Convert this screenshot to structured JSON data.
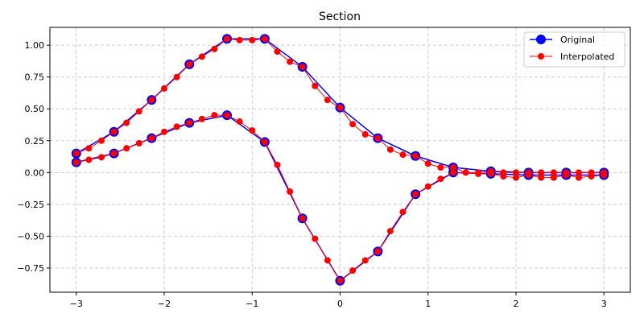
{
  "chart_data": {
    "type": "line",
    "title": "Section",
    "xlabel": "",
    "ylabel": "",
    "xlim": [
      -3.3,
      3.3
    ],
    "ylim": [
      -0.94,
      1.14
    ],
    "x_ticks": [
      -3,
      -2,
      -1,
      0,
      1,
      2,
      3
    ],
    "y_ticks": [
      -0.75,
      -0.5,
      -0.25,
      0.0,
      0.25,
      0.5,
      0.75,
      1.0
    ],
    "x_tick_labels": [
      "−3",
      "−2",
      "−1",
      "0",
      "1",
      "2",
      "3"
    ],
    "y_tick_labels": [
      "−0.75",
      "−0.50",
      "−0.25",
      "0.00",
      "0.25",
      "0.50",
      "0.75",
      "1.00"
    ],
    "grid": true,
    "legend_position": "top-right",
    "series": [
      {
        "name": "Original",
        "color": "#0000ff",
        "marker": "large-circle",
        "lines": [
          {
            "x": [
              -3,
              -2.571,
              -2.143,
              -1.714,
              -1.286,
              -0.857,
              -0.429,
              0,
              0.429,
              0.857,
              1.286,
              1.714,
              2.143,
              2.571,
              3
            ],
            "y": [
              0.15,
              0.32,
              0.57,
              0.85,
              1.05,
              1.05,
              0.83,
              0.51,
              0.27,
              0.13,
              0.04,
              0.01,
              0.0,
              0.0,
              0.0
            ]
          },
          {
            "x": [
              -3,
              -2.571,
              -2.143,
              -1.714,
              -1.286,
              -0.857,
              -0.429,
              0,
              0.429,
              0.857,
              1.286,
              1.714,
              2.143,
              2.571,
              3
            ],
            "y": [
              0.08,
              0.15,
              0.27,
              0.39,
              0.45,
              0.24,
              -0.36,
              -0.85,
              -0.62,
              -0.17,
              0.0,
              -0.01,
              -0.02,
              -0.02,
              -0.02
            ]
          }
        ]
      },
      {
        "name": "Interpolated",
        "color": "#ff0000",
        "marker": "small-circle",
        "lines": [
          {
            "x": [
              -3,
              -2.857,
              -2.714,
              -2.571,
              -2.429,
              -2.286,
              -2.143,
              -2.0,
              -1.857,
              -1.714,
              -1.571,
              -1.429,
              -1.286,
              -1.143,
              -1.0,
              -0.857,
              -0.714,
              -0.571,
              -0.429,
              -0.286,
              -0.143,
              0.0,
              0.143,
              0.286,
              0.429,
              0.571,
              0.714,
              0.857,
              1.0,
              1.143,
              1.286,
              1.429,
              1.571,
              1.714,
              1.857,
              2.0,
              2.143,
              2.286,
              2.429,
              2.571,
              2.714,
              2.857,
              3.0
            ],
            "y": [
              0.15,
              0.19,
              0.25,
              0.32,
              0.39,
              0.48,
              0.57,
              0.66,
              0.75,
              0.85,
              0.91,
              0.97,
              1.05,
              1.04,
              1.04,
              1.05,
              0.95,
              0.87,
              0.83,
              0.68,
              0.57,
              0.51,
              0.38,
              0.3,
              0.27,
              0.18,
              0.14,
              0.13,
              0.07,
              0.04,
              0.04,
              0.0,
              0.0,
              0.01,
              0.0,
              0.0,
              0.0,
              0.0,
              0.0,
              0.0,
              0.0,
              0.0,
              0.0
            ]
          },
          {
            "x": [
              -3,
              -2.857,
              -2.714,
              -2.571,
              -2.429,
              -2.286,
              -2.143,
              -2.0,
              -1.857,
              -1.714,
              -1.571,
              -1.429,
              -1.286,
              -1.143,
              -1.0,
              -0.857,
              -0.714,
              -0.571,
              -0.429,
              -0.286,
              -0.143,
              0.0,
              0.143,
              0.286,
              0.429,
              0.571,
              0.714,
              0.857,
              1.0,
              1.143,
              1.286,
              1.429,
              1.571,
              1.714,
              1.857,
              2.0,
              2.143,
              2.286,
              2.429,
              2.571,
              2.714,
              2.857,
              3.0
            ],
            "y": [
              0.08,
              0.1,
              0.12,
              0.15,
              0.19,
              0.23,
              0.27,
              0.32,
              0.36,
              0.39,
              0.42,
              0.45,
              0.45,
              0.4,
              0.33,
              0.24,
              0.06,
              -0.15,
              -0.36,
              -0.52,
              -0.69,
              -0.85,
              -0.77,
              -0.69,
              -0.62,
              -0.46,
              -0.31,
              -0.17,
              -0.11,
              -0.05,
              0.0,
              0.0,
              -0.01,
              -0.01,
              -0.03,
              -0.04,
              -0.02,
              -0.04,
              -0.04,
              -0.02,
              -0.04,
              -0.03,
              -0.02
            ]
          }
        ]
      }
    ]
  }
}
